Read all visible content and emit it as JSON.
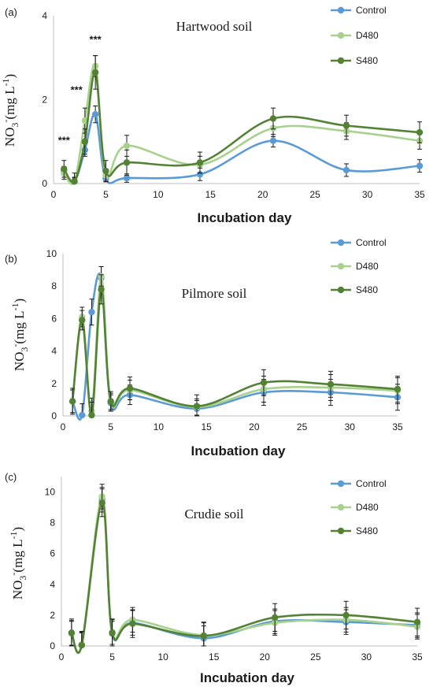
{
  "colors": {
    "Control": "#5b9bd5",
    "D480": "#a9d18e",
    "S480": "#548235"
  },
  "chart_data": [
    {
      "type": "line",
      "panel_label": "(a)",
      "title": "Hartwood soil",
      "xlabel": "Incubation day",
      "ylabel": "NO3-(mg L-1)",
      "xlim": [
        0,
        35
      ],
      "ylim": [
        0,
        4
      ],
      "xticks": [
        0,
        5,
        10,
        15,
        20,
        25,
        30,
        35
      ],
      "yticks": [
        0,
        2,
        4
      ],
      "x": [
        1,
        2,
        3,
        4,
        5,
        7,
        14,
        21,
        28,
        35
      ],
      "legend_position": "top-right",
      "annotations": [
        {
          "text": "***",
          "x": 1,
          "y": 0.95
        },
        {
          "text": "***",
          "x": 2.2,
          "y": 2.15
        },
        {
          "text": "***",
          "x": 4,
          "y": 3.35
        }
      ],
      "series": [
        {
          "name": "Control",
          "values": [
            0.3,
            0.05,
            0.8,
            1.65,
            0.12,
            0.13,
            0.22,
            1.02,
            0.32,
            0.42
          ],
          "errors": [
            0.1,
            0.08,
            0.15,
            0.2,
            0.08,
            0.1,
            0.15,
            0.15,
            0.15,
            0.15
          ]
        },
        {
          "name": "D480",
          "values": [
            0.25,
            0.05,
            1.5,
            2.8,
            0.2,
            0.9,
            0.45,
            1.32,
            1.25,
            1.02
          ],
          "errors": [
            0.15,
            0.1,
            0.3,
            0.25,
            0.15,
            0.25,
            0.2,
            0.2,
            0.2,
            0.2
          ]
        },
        {
          "name": "S480",
          "values": [
            0.35,
            0.05,
            1.0,
            2.65,
            0.3,
            0.5,
            0.5,
            1.55,
            1.38,
            1.22
          ],
          "errors": [
            0.2,
            0.2,
            0.3,
            0.4,
            0.25,
            0.3,
            0.25,
            0.25,
            0.25,
            0.25
          ]
        }
      ]
    },
    {
      "type": "line",
      "panel_label": "(b)",
      "title": "Pilmore soil",
      "xlabel": "Incubation day",
      "ylabel": "NO3-(mg L-1)",
      "xlim": [
        0,
        35
      ],
      "ylim": [
        0,
        10
      ],
      "xticks": [
        0,
        5,
        10,
        15,
        20,
        25,
        30,
        35
      ],
      "yticks": [
        0,
        2,
        4,
        6,
        8,
        10
      ],
      "x": [
        1,
        2,
        3,
        4,
        5,
        7,
        14,
        21,
        28,
        35
      ],
      "legend_position": "top-right",
      "series": [
        {
          "name": "Control",
          "values": [
            0.9,
            0.05,
            6.4,
            8.5,
            0.8,
            1.3,
            0.45,
            1.45,
            1.45,
            1.15
          ],
          "errors": [
            0.7,
            0.7,
            0.8,
            0.7,
            0.5,
            0.6,
            0.5,
            0.8,
            0.8,
            0.8
          ]
        },
        {
          "name": "D480",
          "values": [
            0.9,
            6.1,
            0.3,
            8.6,
            0.9,
            1.6,
            0.55,
            1.65,
            1.75,
            1.55
          ],
          "errors": [
            0.7,
            0.6,
            0.8,
            0.6,
            0.5,
            0.6,
            0.5,
            0.8,
            0.8,
            0.8
          ]
        },
        {
          "name": "S480",
          "values": [
            0.9,
            5.9,
            0.05,
            7.8,
            0.9,
            1.7,
            0.6,
            2.05,
            1.95,
            1.65
          ],
          "errors": [
            0.8,
            0.6,
            0.8,
            0.9,
            0.6,
            0.7,
            0.7,
            0.8,
            0.8,
            0.8
          ]
        }
      ]
    },
    {
      "type": "line",
      "panel_label": "(c)",
      "title": "Crudie soil",
      "xlabel": "Incubation day",
      "ylabel": "NO3-(mg L-1)",
      "xlim": [
        0,
        35
      ],
      "ylim": [
        0,
        11
      ],
      "xticks": [
        0,
        5,
        10,
        15,
        20,
        25,
        30,
        35
      ],
      "yticks": [
        0,
        2,
        4,
        6,
        8,
        10
      ],
      "x": [
        1,
        2,
        4,
        5,
        7,
        14,
        21,
        28,
        35
      ],
      "legend_position": "top-right",
      "series": [
        {
          "name": "Control",
          "values": [
            0.85,
            0.05,
            9.5,
            0.8,
            1.5,
            0.5,
            1.6,
            1.55,
            1.35
          ],
          "errors": [
            0.8,
            0.8,
            0.8,
            0.8,
            0.8,
            0.8,
            0.8,
            0.8,
            0.8
          ]
        },
        {
          "name": "D480",
          "values": [
            0.8,
            0.1,
            9.7,
            0.9,
            1.7,
            0.7,
            1.5,
            1.7,
            1.25
          ],
          "errors": [
            0.8,
            0.8,
            0.8,
            0.8,
            0.8,
            0.8,
            0.8,
            0.8,
            0.8
          ]
        },
        {
          "name": "S480",
          "values": [
            0.85,
            0.05,
            9.3,
            0.85,
            1.45,
            0.65,
            1.85,
            2.0,
            1.55
          ],
          "errors": [
            0.9,
            0.9,
            0.9,
            0.9,
            0.9,
            0.9,
            0.9,
            0.9,
            0.9
          ]
        }
      ]
    }
  ]
}
